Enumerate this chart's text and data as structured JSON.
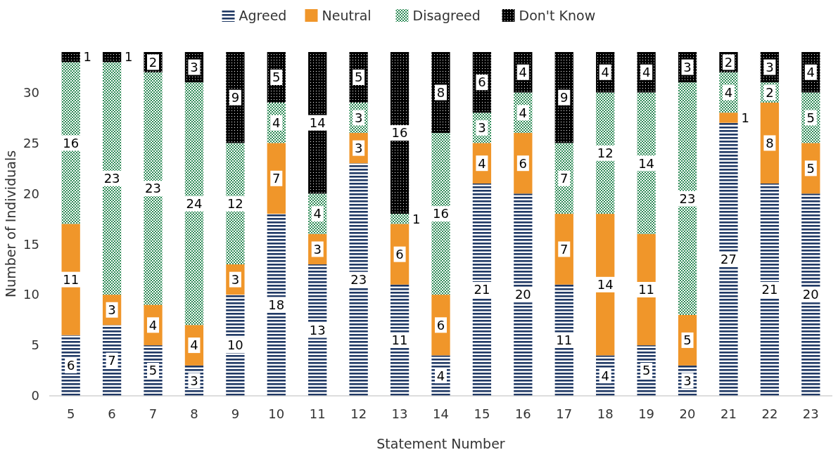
{
  "chart_data": {
    "type": "bar",
    "stacked": true,
    "xlabel": "Statement Number",
    "ylabel": "Number of Individuals",
    "categories": [
      "5",
      "6",
      "7",
      "8",
      "9",
      "10",
      "11",
      "12",
      "13",
      "14",
      "15",
      "16",
      "17",
      "18",
      "19",
      "20",
      "21",
      "22",
      "23"
    ],
    "series": [
      {
        "name": "Agreed",
        "color": "#1f3864",
        "values": [
          6,
          7,
          5,
          3,
          10,
          18,
          13,
          23,
          11,
          4,
          21,
          20,
          11,
          4,
          5,
          3,
          27,
          21,
          20
        ]
      },
      {
        "name": "Neutral",
        "color": "#f0962a",
        "values": [
          11,
          3,
          4,
          4,
          3,
          7,
          3,
          3,
          6,
          6,
          4,
          6,
          7,
          14,
          11,
          5,
          1,
          8,
          5
        ]
      },
      {
        "name": "Disagreed",
        "color": "#2e8b57",
        "values": [
          16,
          23,
          23,
          24,
          12,
          4,
          4,
          3,
          1,
          16,
          3,
          4,
          7,
          12,
          14,
          23,
          4,
          2,
          5
        ]
      },
      {
        "name": "Don't Know",
        "color": "#000000",
        "values": [
          1,
          1,
          2,
          3,
          9,
          5,
          14,
          5,
          16,
          8,
          6,
          4,
          9,
          4,
          4,
          3,
          2,
          3,
          4
        ]
      }
    ],
    "ylim": [
      0,
      34
    ],
    "yticks": [
      0,
      5,
      10,
      15,
      20,
      25,
      30
    ],
    "grid": false,
    "legend": "top",
    "data_labels": true
  }
}
